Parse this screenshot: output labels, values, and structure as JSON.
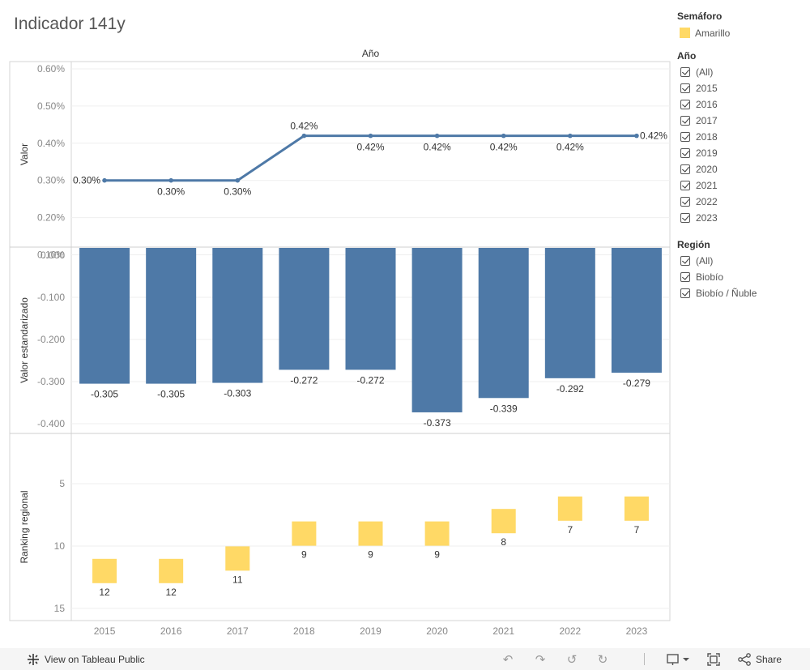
{
  "title": "Indicador 141y",
  "chart_data": [
    {
      "type": "line",
      "title": "Año",
      "ylabel": "Valor",
      "x": [
        "2015",
        "2016",
        "2017",
        "2018",
        "2019",
        "2020",
        "2021",
        "2022",
        "2023"
      ],
      "values": [
        0.3,
        0.3,
        0.3,
        0.42,
        0.42,
        0.42,
        0.42,
        0.42,
        0.42
      ],
      "data_labels": [
        "0.30%",
        "0.30%",
        "0.30%",
        "0.42%",
        "0.42%",
        "0.42%",
        "0.42%",
        "0.42%",
        "0.42%"
      ],
      "yticks": [
        "0.60%",
        "0.50%",
        "0.40%",
        "0.30%",
        "0.20%",
        "0.10%"
      ],
      "ylim": [
        0.1,
        0.6
      ],
      "color": "#4E79A7"
    },
    {
      "type": "bar",
      "ylabel": "Valor estandarizado",
      "categories": [
        "2015",
        "2016",
        "2017",
        "2018",
        "2019",
        "2020",
        "2021",
        "2022",
        "2023"
      ],
      "values": [
        -0.305,
        -0.305,
        -0.303,
        -0.272,
        -0.272,
        -0.373,
        -0.339,
        -0.292,
        -0.279
      ],
      "data_labels": [
        "-0.305",
        "-0.305",
        "-0.303",
        "-0.272",
        "-0.272",
        "-0.373",
        "-0.339",
        "-0.292",
        "-0.279"
      ],
      "yticks": [
        "0.000",
        "-0.100",
        "-0.200",
        "-0.300",
        "-0.400"
      ],
      "ylim": [
        -0.4,
        0.0
      ],
      "color": "#4E79A7"
    },
    {
      "type": "scatter",
      "ylabel": "Ranking regional",
      "x": [
        "2015",
        "2016",
        "2017",
        "2018",
        "2019",
        "2020",
        "2021",
        "2022",
        "2023"
      ],
      "values": [
        12,
        12,
        11,
        9,
        9,
        9,
        8,
        7,
        7
      ],
      "data_labels": [
        "12",
        "12",
        "11",
        "9",
        "9",
        "9",
        "8",
        "7",
        "7"
      ],
      "yticks": [
        "5",
        "10",
        "15"
      ],
      "ylim": [
        15,
        5
      ],
      "reversed_axis": true,
      "color": "#FFD966"
    }
  ],
  "legend": {
    "semaforo_title": "Semáforo",
    "semaforo_item": "Amarillo",
    "semaforo_color": "#FFD966",
    "ano_title": "Año",
    "ano_items": [
      "(All)",
      "2015",
      "2016",
      "2017",
      "2018",
      "2019",
      "2020",
      "2021",
      "2022",
      "2023"
    ],
    "region_title": "Región",
    "region_items": [
      "(All)",
      "Biobío",
      "Biobío / Ñuble"
    ]
  },
  "footer": {
    "view_label": "View on Tableau Public",
    "share_label": "Share",
    "icons": [
      "tableau-logo-icon",
      "undo-icon",
      "redo-icon",
      "revert-icon",
      "refresh-icon",
      "download-icon",
      "fullscreen-icon",
      "share-icon"
    ]
  }
}
